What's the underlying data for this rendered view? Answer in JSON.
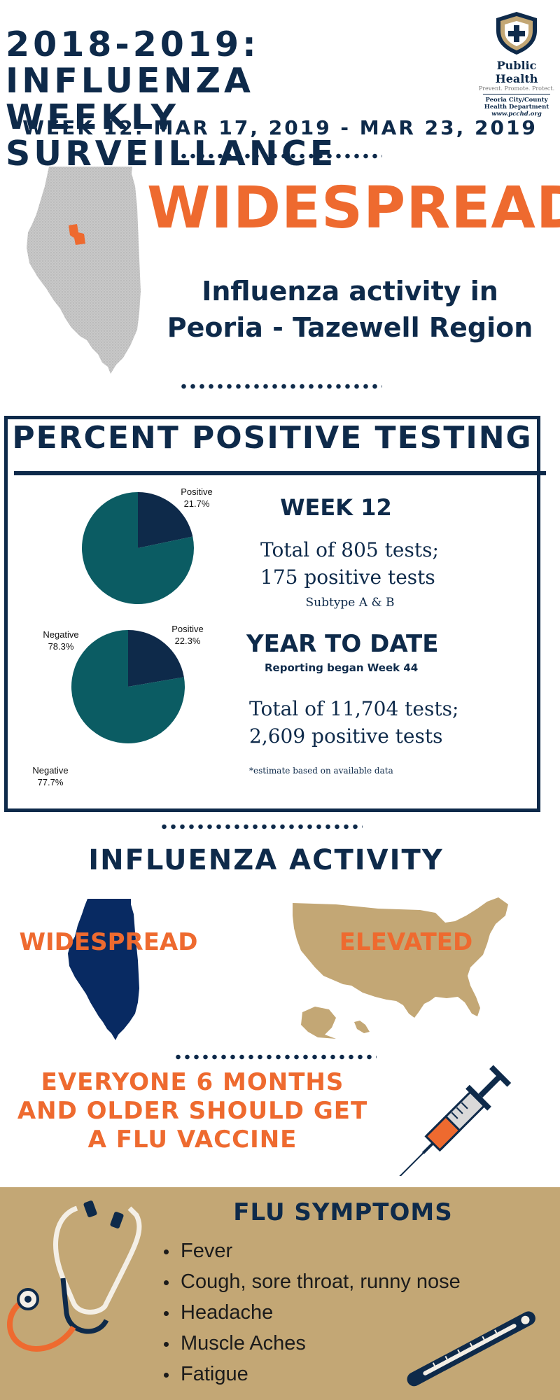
{
  "header": {
    "title_line1": "2018-2019: INFLUENZA",
    "title_line2": "WEEKLY SURVEILLANCE",
    "week_range": "WEEK 12: MAR 17, 2019 - MAR 23, 2019"
  },
  "logo": {
    "org": "Public Health",
    "tagline": "Prevent. Promote. Protect.",
    "dept_line1": "Peoria City/County",
    "dept_line2": "Health Department",
    "url": "www.pcchd.org"
  },
  "regional": {
    "level": "WIDESPREAD",
    "line1": "Influenza activity in",
    "line2": "Peoria - Tazewell Region"
  },
  "percent_positive": {
    "title": "PERCENT POSITIVE TESTING",
    "week": {
      "heading": "WEEK 12",
      "total_line": "Total of 805 tests;",
      "positive_line": "175 positive tests",
      "subtype": "Subtype A & B"
    },
    "ytd": {
      "heading": "YEAR TO DATE",
      "note": "Reporting began Week 44",
      "total_line": "Total of 11,704 tests;",
      "positive_line": "2,609 positive tests"
    },
    "estimate_note": "*estimate based on available data"
  },
  "chart_data": [
    {
      "type": "pie",
      "labels": [
        "Positive",
        "Negative"
      ],
      "values": [
        21.7,
        78.3
      ],
      "value_labels": [
        "21.7%",
        "78.3%"
      ],
      "colors": [
        "#0e2a4a",
        "#0b5c63"
      ]
    },
    {
      "type": "pie",
      "labels": [
        "Positive",
        "Negative"
      ],
      "values": [
        22.3,
        77.7
      ],
      "value_labels": [
        "22.3%",
        "77.7%"
      ],
      "colors": [
        "#0e2a4a",
        "#0b5c63"
      ]
    }
  ],
  "activity": {
    "title": "INFLUENZA ACTIVITY",
    "illinois_level": "WIDESPREAD",
    "us_level": "ELEVATED"
  },
  "vaccine": {
    "line1": "EVERYONE 6 MONTHS",
    "line2": "AND OLDER SHOULD GET",
    "line3": "A FLU VACCINE"
  },
  "symptoms": {
    "title": "FLU SYMPTOMS",
    "items": [
      "Fever",
      "Cough, sore throat, runny nose",
      "Headache",
      "Muscle Aches",
      "Fatigue"
    ]
  },
  "colors": {
    "navy": "#0e2a4a",
    "orange": "#ee6a2f",
    "teal": "#0b5c63",
    "tan": "#c3a775",
    "gray_map": "#c8c8c8"
  }
}
